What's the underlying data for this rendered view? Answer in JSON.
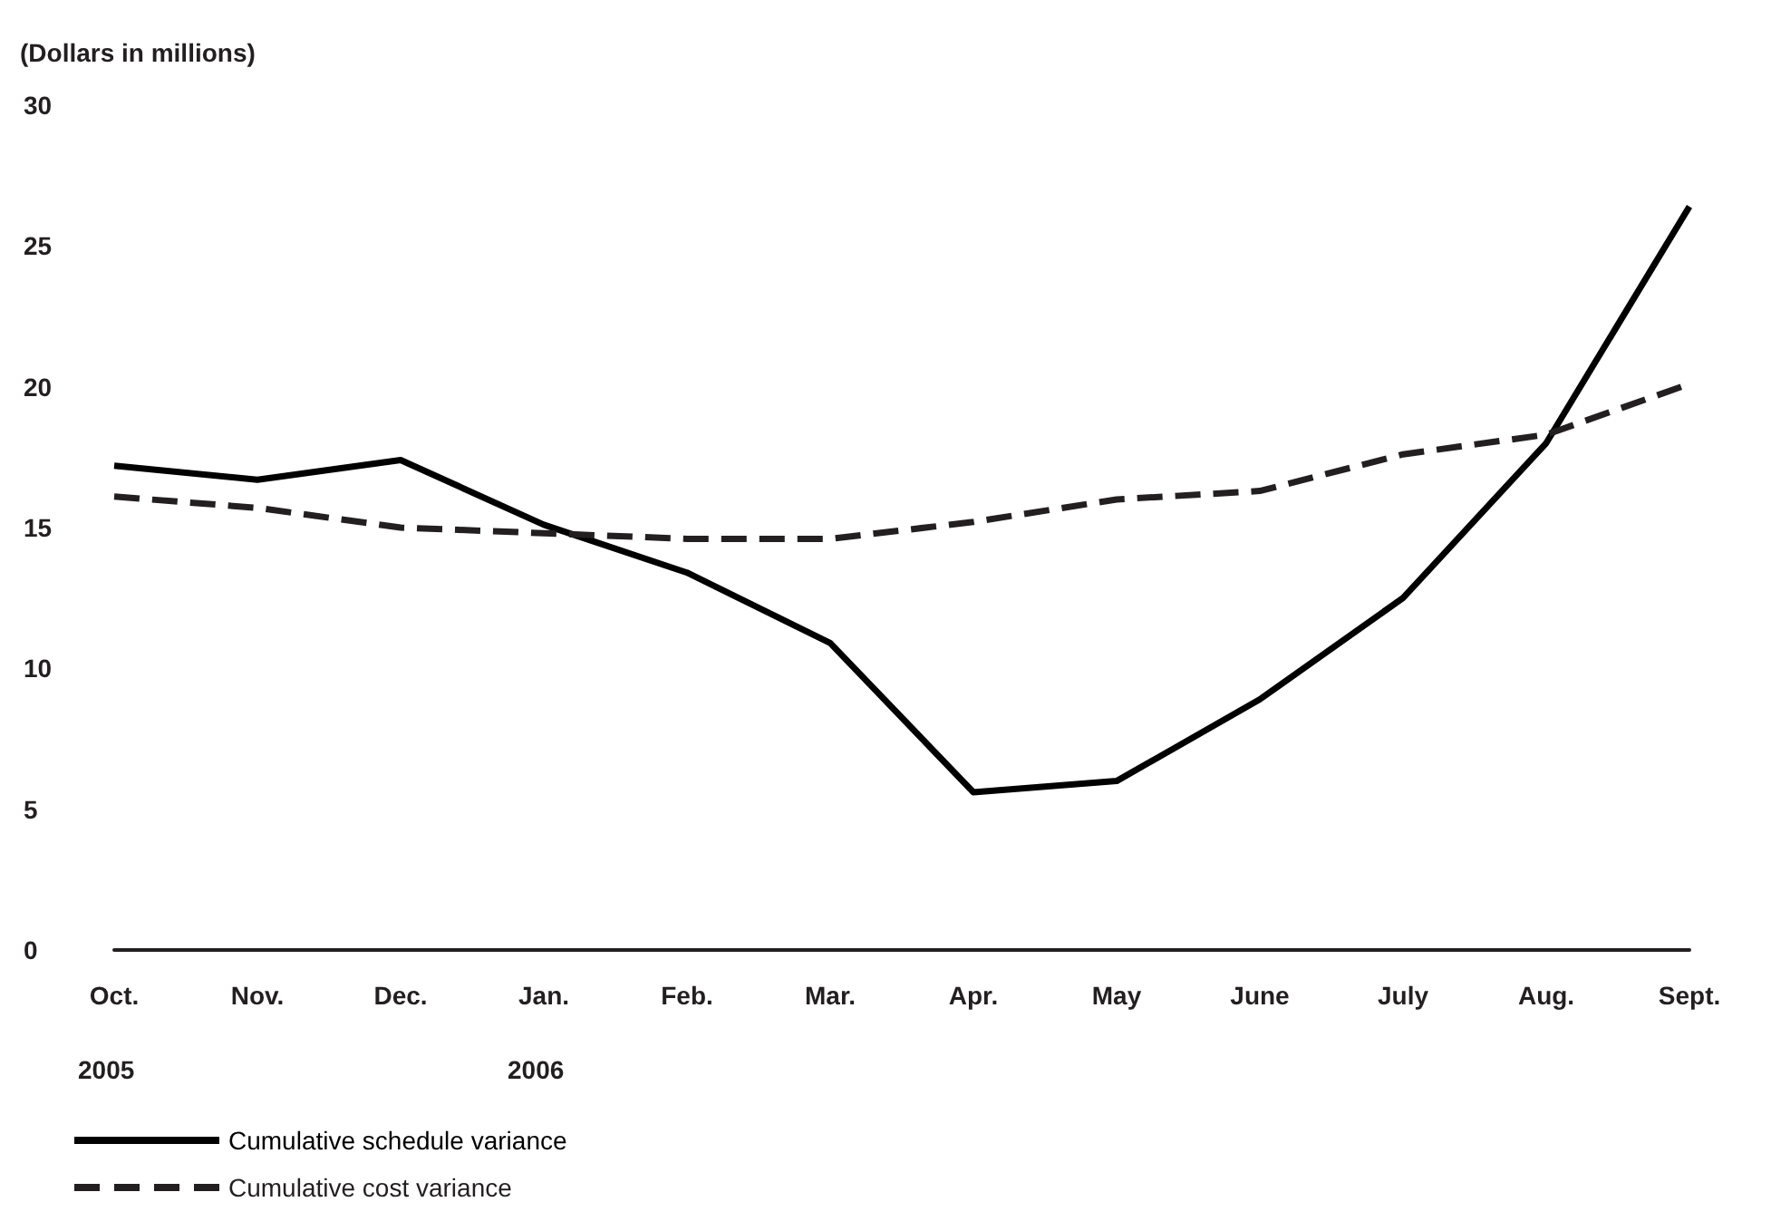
{
  "chart_data": {
    "type": "line",
    "ylabel": "(Dollars in millions)",
    "categories": [
      "Oct.",
      "Nov.",
      "Dec.",
      "Jan.",
      "Feb.",
      "Mar.",
      "Apr.",
      "May",
      "June",
      "July",
      "Aug.",
      "Sept."
    ],
    "series": [
      {
        "name": "Cumulative schedule variance",
        "color": "#000000",
        "line_style": "solid",
        "values": [
          17.2,
          16.7,
          17.4,
          15.1,
          13.4,
          10.9,
          5.6,
          6.0,
          8.9,
          12.5,
          18.0,
          26.4
        ]
      },
      {
        "name": "Cumulative cost variance",
        "color": "#231f20",
        "line_style": "dashed",
        "values": [
          16.1,
          15.7,
          15.0,
          14.8,
          14.6,
          14.6,
          15.2,
          16.0,
          16.3,
          17.6,
          18.3,
          20.1
        ]
      }
    ],
    "ylim": [
      0,
      30
    ],
    "yticks": [
      0,
      5,
      10,
      15,
      20,
      25,
      30
    ],
    "annotations": [
      "2005",
      "2006"
    ],
    "grid": false,
    "legend": "bottom left",
    "marker": "none"
  }
}
